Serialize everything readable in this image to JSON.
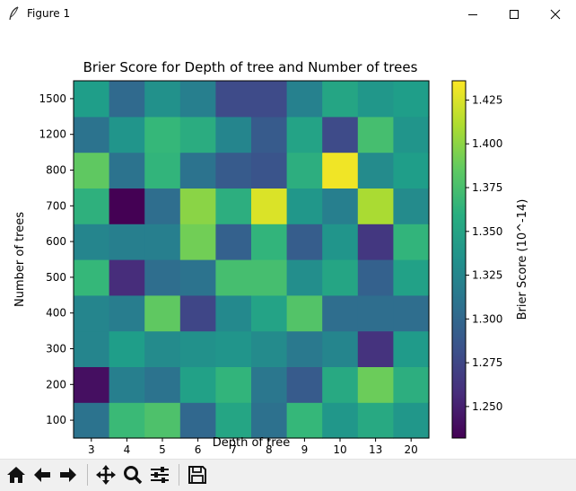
{
  "window": {
    "title": "Figure 1"
  },
  "toolbar": {
    "buttons": [
      {
        "name": "home-button",
        "icon": "home-icon"
      },
      {
        "name": "back-button",
        "icon": "back-arrow-icon"
      },
      {
        "name": "forward-button",
        "icon": "forward-arrow-icon"
      },
      {
        "name": "pan-button",
        "icon": "move-icon"
      },
      {
        "name": "zoom-button",
        "icon": "magnifier-icon"
      },
      {
        "name": "configure-subplots-button",
        "icon": "sliders-icon"
      },
      {
        "name": "save-button",
        "icon": "floppy-disk-icon"
      }
    ]
  },
  "chart_data": {
    "type": "heatmap",
    "title": "Brier Score for Depth of tree and Number of trees",
    "xlabel": "Depth of tree",
    "ylabel": "Number of trees",
    "x_categories": [
      "3",
      "4",
      "5",
      "6",
      "7",
      "8",
      "9",
      "10",
      "13",
      "20"
    ],
    "y_categories": [
      "100",
      "200",
      "300",
      "400",
      "500",
      "600",
      "700",
      "800",
      "1200",
      "1500"
    ],
    "values": [
      [
        1.31,
        1.37,
        1.378,
        1.3,
        1.352,
        1.308,
        1.368,
        1.34,
        1.355,
        1.34
      ],
      [
        1.24,
        1.32,
        1.31,
        1.348,
        1.365,
        1.313,
        1.29,
        1.355,
        1.39,
        1.36
      ],
      [
        1.325,
        1.345,
        1.33,
        1.335,
        1.338,
        1.33,
        1.315,
        1.325,
        1.262,
        1.343
      ],
      [
        1.325,
        1.318,
        1.385,
        1.275,
        1.328,
        1.35,
        1.38,
        1.305,
        1.305,
        1.305
      ],
      [
        1.368,
        1.258,
        1.305,
        1.31,
        1.375,
        1.375,
        1.332,
        1.352,
        1.295,
        1.348
      ],
      [
        1.325,
        1.32,
        1.32,
        1.392,
        1.295,
        1.365,
        1.292,
        1.338,
        1.265,
        1.365
      ],
      [
        1.362,
        1.232,
        1.305,
        1.4,
        1.36,
        1.425,
        1.34,
        1.32,
        1.41,
        1.33
      ],
      [
        1.385,
        1.31,
        1.365,
        1.31,
        1.29,
        1.285,
        1.36,
        1.432,
        1.33,
        1.345
      ],
      [
        1.31,
        1.338,
        1.368,
        1.358,
        1.325,
        1.29,
        1.35,
        1.278,
        1.375,
        1.338
      ],
      [
        1.345,
        1.302,
        1.335,
        1.32,
        1.278,
        1.278,
        1.322,
        1.352,
        1.34,
        1.345
      ]
    ],
    "colorbar": {
      "label": "Brier Score (10^-14)",
      "range": [
        1.232,
        1.436
      ],
      "ticks": [
        "1.250",
        "1.275",
        "1.300",
        "1.325",
        "1.350",
        "1.375",
        "1.400",
        "1.425"
      ],
      "colormap": "viridis"
    },
    "grid": false
  }
}
